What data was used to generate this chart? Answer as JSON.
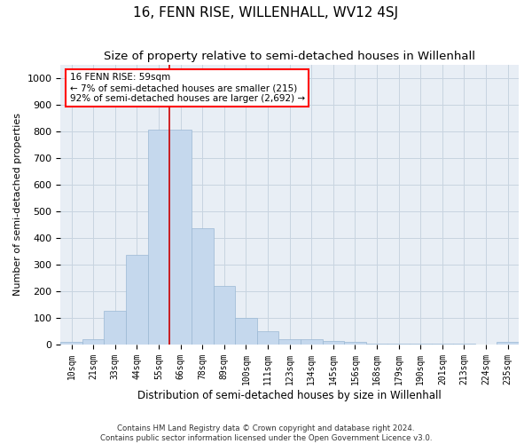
{
  "title": "16, FENN RISE, WILLENHALL, WV12 4SJ",
  "subtitle": "Size of property relative to semi-detached houses in Willenhall",
  "xlabel": "Distribution of semi-detached houses by size in Willenhall",
  "ylabel": "Number of semi-detached properties",
  "footer_line1": "Contains HM Land Registry data © Crown copyright and database right 2024.",
  "footer_line2": "Contains public sector information licensed under the Open Government Licence v3.0.",
  "annotation_text_line1": "16 FENN RISE: 59sqm",
  "annotation_text_line2": "← 7% of semi-detached houses are smaller (215)",
  "annotation_text_line3": "92% of semi-detached houses are larger (2,692) →",
  "bar_color": "#c5d8ed",
  "bar_edge_color": "#9ab8d4",
  "vline_color": "#cc0000",
  "grid_color": "#c8d4e0",
  "bg_color": "#e8eef5",
  "categories": [
    "10sqm",
    "21sqm",
    "33sqm",
    "44sqm",
    "55sqm",
    "66sqm",
    "78sqm",
    "89sqm",
    "100sqm",
    "111sqm",
    "123sqm",
    "134sqm",
    "145sqm",
    "156sqm",
    "168sqm",
    "179sqm",
    "190sqm",
    "201sqm",
    "213sqm",
    "224sqm",
    "235sqm"
  ],
  "values": [
    8,
    20,
    125,
    335,
    805,
    805,
    435,
    220,
    100,
    48,
    18,
    18,
    12,
    8,
    3,
    3,
    2,
    1,
    1,
    0,
    8
  ],
  "ylim": [
    0,
    1050
  ],
  "yticks": [
    0,
    100,
    200,
    300,
    400,
    500,
    600,
    700,
    800,
    900,
    1000
  ],
  "vline_x_index": 4.5,
  "title_fontsize": 11,
  "subtitle_fontsize": 9.5
}
